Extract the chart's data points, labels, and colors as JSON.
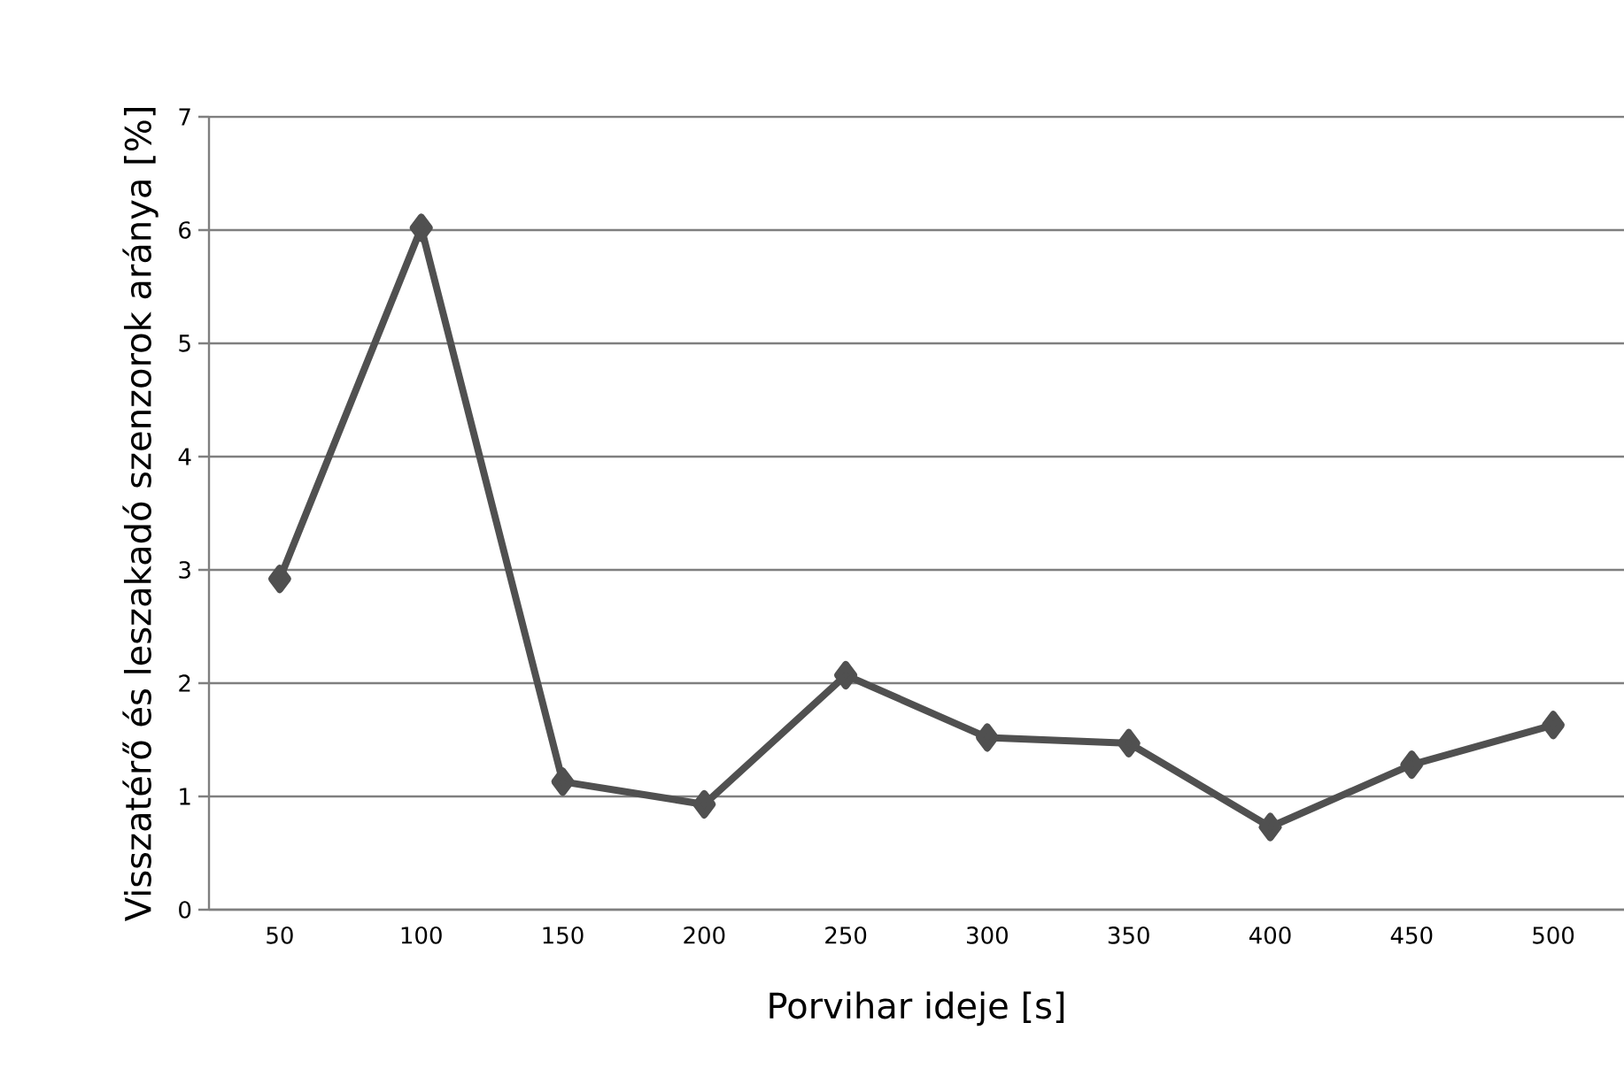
{
  "chart_data": {
    "type": "line",
    "xlabel": "Porvihar ideje [s]",
    "ylabel": "Visszatérő és leszakadó szenzorok aránya [%]",
    "categories": [
      "50",
      "100",
      "150",
      "200",
      "250",
      "300",
      "350",
      "400",
      "450",
      "500"
    ],
    "series": [
      {
        "color": "#505050",
        "values": [
          2.92,
          6.02,
          1.13,
          0.93,
          2.07,
          1.52,
          1.47,
          0.73,
          1.28,
          1.63
        ]
      }
    ],
    "ylim": [
      0,
      7
    ],
    "yticks": [
      0,
      1,
      2,
      3,
      4,
      5,
      6,
      7
    ],
    "grid": "y",
    "marker": "diamond",
    "line_style": "solid"
  }
}
